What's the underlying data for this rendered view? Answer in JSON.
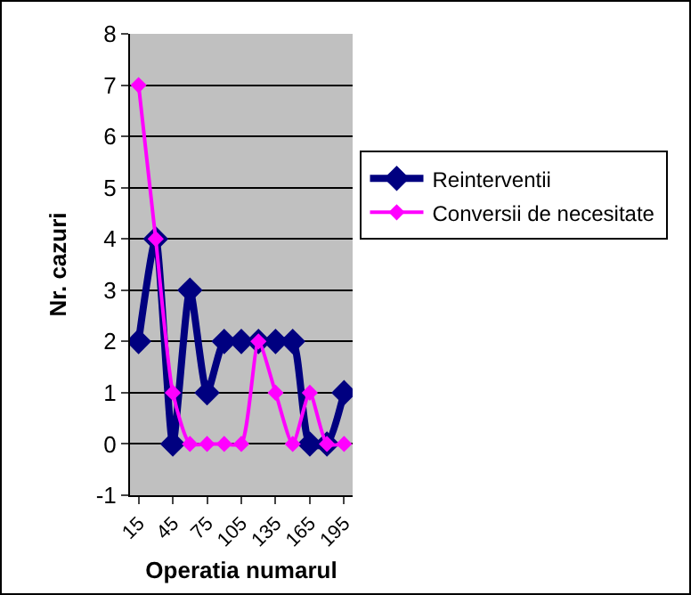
{
  "chart_data": {
    "type": "line",
    "xlabel": "Operatia numarul",
    "ylabel": "Nr. cazuri",
    "categories": [
      "15",
      null,
      "45",
      null,
      "75",
      null,
      "105",
      null,
      "135",
      null,
      "165",
      null,
      "195"
    ],
    "series": [
      {
        "name": "Reinterventii",
        "color": "#000080",
        "values": [
          2,
          4,
          0,
          3,
          1,
          2,
          2,
          2,
          2,
          2,
          0,
          0,
          1
        ]
      },
      {
        "name": "Conversii de necesitate",
        "color": "#ff00ff",
        "values": [
          7,
          4,
          1,
          0,
          0,
          0,
          0,
          2,
          1,
          0,
          1,
          0,
          0
        ]
      }
    ],
    "ylim": [
      -1,
      8
    ],
    "yticks": [
      -1,
      0,
      1,
      2,
      3,
      4,
      5,
      6,
      7,
      8
    ],
    "grid": "y",
    "legend": "right",
    "marker": "diamond",
    "line_style": "solid"
  }
}
